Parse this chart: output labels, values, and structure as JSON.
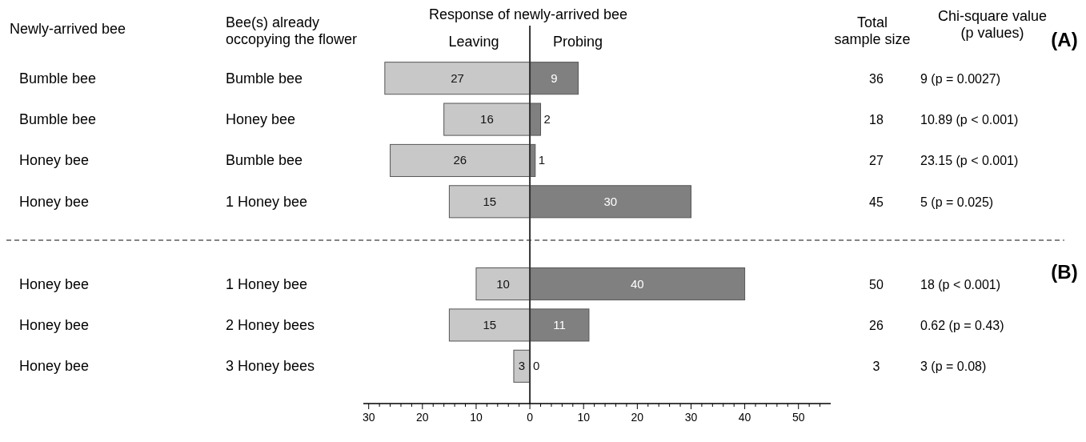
{
  "chart_data": {
    "type": "bar",
    "orientation": "horizontal",
    "categories": [
      "Bumble bee",
      "Honey bee",
      "Bumble bee",
      "1 Honey bee",
      null,
      "1 Honey bee",
      "2 Honey bees",
      "3 Honey bees"
    ],
    "series": [
      {
        "name": "Leaving",
        "color": "#c8c8c8",
        "base": [
          -27,
          -16,
          -26,
          -15,
          null,
          -10,
          -15,
          -3
        ],
        "values": [
          27,
          16,
          26,
          15,
          null,
          10,
          15,
          3
        ]
      },
      {
        "name": "Probing",
        "color": "#808080",
        "values": [
          9,
          2,
          1,
          30,
          null,
          40,
          11,
          0
        ]
      }
    ],
    "data_labels": true,
    "xlim": [
      -31,
      56
    ],
    "xticks": [
      {
        "value": -30,
        "label": "30"
      },
      {
        "value": -28,
        "label": null
      },
      {
        "value": -26,
        "label": null
      },
      {
        "value": -24,
        "label": null
      },
      {
        "value": -22,
        "label": null
      },
      {
        "value": -20,
        "label": "20"
      },
      {
        "value": -18,
        "label": null
      },
      {
        "value": -16,
        "label": null
      },
      {
        "value": -14,
        "label": null
      },
      {
        "value": -12,
        "label": null
      },
      {
        "value": -10,
        "label": "10"
      },
      {
        "value": -8,
        "label": null
      },
      {
        "value": -6,
        "label": null
      },
      {
        "value": -4,
        "label": null
      },
      {
        "value": -2,
        "label": null
      },
      0,
      {
        "value": 2,
        "label": null
      },
      {
        "value": 4,
        "label": null
      },
      {
        "value": 6,
        "label": null
      },
      {
        "value": 8,
        "label": null
      },
      10,
      {
        "value": 12,
        "label": null
      },
      {
        "value": 14,
        "label": null
      },
      {
        "value": 16,
        "label": null
      },
      {
        "value": 18,
        "label": null
      },
      20,
      {
        "value": 22,
        "label": null
      },
      {
        "value": 24,
        "label": null
      },
      {
        "value": 26,
        "label": null
      },
      {
        "value": 28,
        "label": null
      },
      30,
      {
        "value": 32,
        "label": null
      },
      {
        "value": 34,
        "label": null
      },
      {
        "value": 36,
        "label": null
      },
      {
        "value": 38,
        "label": null
      },
      40,
      {
        "value": 42,
        "label": null
      },
      {
        "value": 44,
        "label": null
      },
      {
        "value": 46,
        "label": null
      },
      {
        "value": 48,
        "label": null
      },
      50,
      {
        "value": 52,
        "label": null
      },
      {
        "value": 54,
        "label": null
      }
    ],
    "legend": "top",
    "annotations": [
      "Newly-arrived bee",
      "Bee(s) already\noccopying the flower",
      "Response of newly-arrived bee",
      "Total\nsample size",
      "Chi-square value\n(p values)",
      "(A)",
      "(B)",
      "Bumble bee",
      "36",
      "9 (p = 0.0027)",
      "Bumble bee",
      "18",
      "10.89 (p < 0.001)",
      "Honey bee",
      "27",
      "23.15 (p < 0.001)",
      "Honey bee",
      "45",
      "5 (p = 0.025)",
      "Honey bee",
      "50",
      "18 (p < 0.001)",
      "Honey bee",
      "26",
      "0.62 (p = 0.43)",
      "Honey bee",
      "3",
      "3 (p = 0.08)"
    ]
  }
}
